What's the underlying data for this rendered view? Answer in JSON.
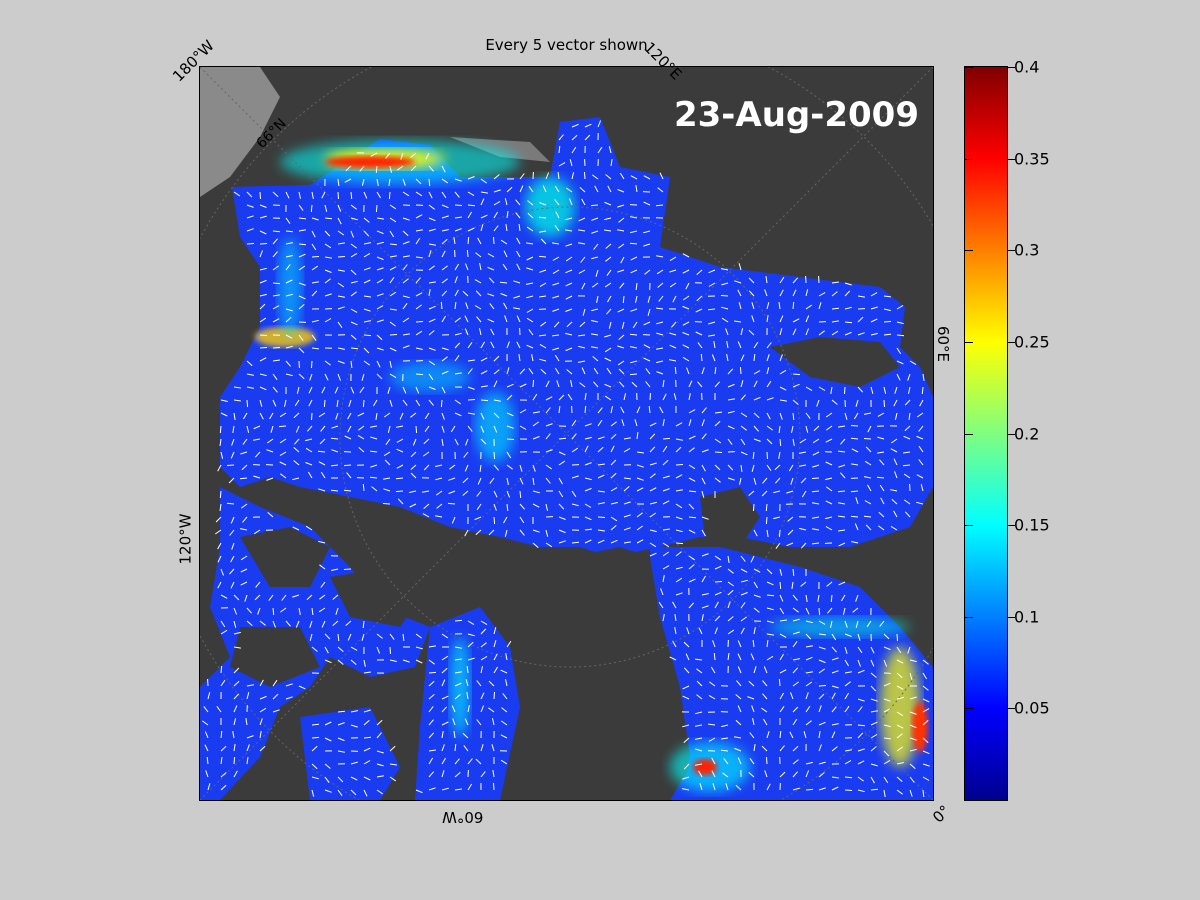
{
  "figure": {
    "title": "Every 5 vector shown",
    "date": "23-Aug-2009"
  },
  "map": {
    "lon_labels": {
      "top_left": "180°W",
      "top_right": "120°E",
      "right": "60°E",
      "bottom_right": "0°",
      "bottom": "60°W",
      "left": "120°W"
    },
    "lat_label": "66°N",
    "colors": {
      "land": "#3b3b3b",
      "ice_shelf": "#8a8a8a",
      "ocean_low": "#0033ff",
      "vectors": "#ffffff"
    }
  },
  "colorbar": {
    "min": 0,
    "max": 0.4,
    "colormap": "jet",
    "ticks": [
      "0.05",
      "0.1",
      "0.15",
      "0.2",
      "0.25",
      "0.3",
      "0.35",
      "0.4"
    ]
  }
}
